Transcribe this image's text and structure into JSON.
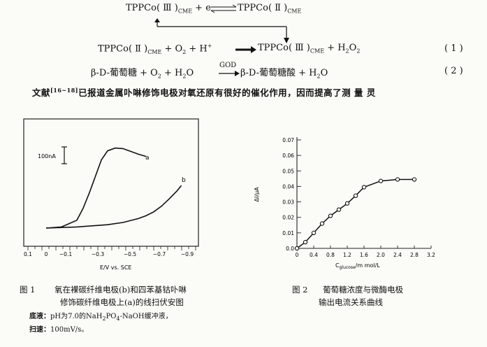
{
  "equations": {
    "eq0": {
      "lhs": "TPPCo( Ⅲ )",
      "lhs_sub": "CME",
      "lhs_plus": " + e",
      "rhs": "TPPCo( Ⅱ )",
      "rhs_sub": "CME"
    },
    "eq1": {
      "a": "TPPCo( Ⅱ )",
      "a_sub": "CME",
      "b": " + O",
      "b_sub": "2",
      "c": " + H",
      "c_sup": "+",
      "d": "TPPCo( Ⅲ )",
      "d_sub": "CME",
      "e": " + H",
      "e_sub": "2",
      "f": "O",
      "f_sub": "2",
      "number": "( 1 )"
    },
    "eq2": {
      "a": "β-D-葡萄糖 + O",
      "a_sub": "2",
      "b": " + H",
      "b_sub": "2",
      "c": "O",
      "over": "GOD",
      "d": "β-D-葡萄糖酸 + H",
      "d_sub": "2",
      "e": "O",
      "number": "( 2 )"
    }
  },
  "paragraph": {
    "pre": "文献",
    "ref": "[16~18]",
    "text": "已报道金属卟啉修饰电极对氧还原有很好的催化作用，因而提高了测 量 灵"
  },
  "figure1": {
    "scale_label": "100nA",
    "curve_a_label": "a",
    "curve_b_label": "b",
    "x_tick_labels": [
      "0.1",
      "0",
      "−0.1",
      "−0.3",
      "−0.5",
      "−0.7",
      "−0.9"
    ],
    "x_axis_label": "E/V   vs. SCE",
    "caption_num": "图  1",
    "caption_line1": "氧在裸碳纤维电极(b)和四苯基钴卟啉",
    "caption_line2": "修饰碳纤维电极上(a)的线扫伏安图",
    "note1_label": "底液：",
    "note1_text": "pH为7.0的NaH",
    "note1_s1": "2",
    "note1_text2": "PO",
    "note1_s2": "4",
    "note1_text3": "-NaOH缓冲液，",
    "note2_label": "扫速：",
    "note2_text": "100mV/s。"
  },
  "figure2": {
    "y_axis_label": "ΔI/μA",
    "x_axis_label_pre": "C",
    "x_axis_label_sub": "glucose",
    "x_axis_label_post": "/m mol/L",
    "caption_num": "图  2",
    "caption_line1": "葡萄糖浓度与微酶电极",
    "caption_line2": "输出电流关系曲线"
  },
  "chart_data": [
    {
      "type": "line",
      "title": "",
      "xlabel": "E/V vs. SCE",
      "ylabel": "",
      "xlim": [
        0.1,
        -0.95
      ],
      "x_tick_labels": [
        "0.1",
        "0",
        "−0.1",
        "−0.3",
        "−0.5",
        "−0.7",
        "−0.9"
      ],
      "series": [
        {
          "name": "a",
          "x": [
            0.0,
            -0.1,
            -0.2,
            -0.24,
            -0.28,
            -0.32,
            -0.36,
            -0.4,
            -0.45,
            -0.5,
            -0.55,
            -0.6,
            -0.65
          ],
          "y": [
            0,
            2,
            14,
            35,
            62,
            92,
            122,
            138,
            143,
            142,
            137,
            132,
            128
          ]
        },
        {
          "name": "b",
          "x": [
            0.0,
            -0.2,
            -0.4,
            -0.5,
            -0.6,
            -0.65,
            -0.7,
            -0.75,
            -0.8,
            -0.85,
            -0.88
          ],
          "y": [
            0,
            2,
            6,
            10,
            17,
            22,
            29,
            39,
            52,
            66,
            76
          ]
        }
      ]
    },
    {
      "type": "line",
      "title": "",
      "xlabel": "C glucose / m mol/L",
      "ylabel": "ΔI/μA",
      "xlim": [
        0,
        3.2
      ],
      "ylim": [
        0,
        0.07
      ],
      "x_ticks": [
        0,
        0.4,
        0.8,
        1.2,
        1.6,
        2.0,
        2.4,
        2.8,
        3.2
      ],
      "x_tick_labels": [
        "0",
        "0.4",
        "0.8",
        "1.2",
        "1.6",
        "2.0",
        "2.4",
        "2.8",
        "3.2"
      ],
      "y_ticks": [
        0,
        0.01,
        0.02,
        0.03,
        0.04,
        0.05,
        0.06,
        0.07
      ],
      "y_tick_labels": [
        "0.0",
        "0.01",
        "0.02",
        "0.03",
        "0.04",
        "0.05",
        "0.06",
        "0.07"
      ],
      "series": [
        {
          "name": "",
          "x": [
            0,
            0.2,
            0.4,
            0.6,
            0.8,
            1.0,
            1.2,
            1.4,
            1.6,
            2.0,
            2.4,
            2.8
          ],
          "y": [
            0.0,
            0.004,
            0.01,
            0.016,
            0.021,
            0.025,
            0.029,
            0.034,
            0.0395,
            0.0435,
            0.0445,
            0.0445
          ]
        }
      ]
    }
  ]
}
